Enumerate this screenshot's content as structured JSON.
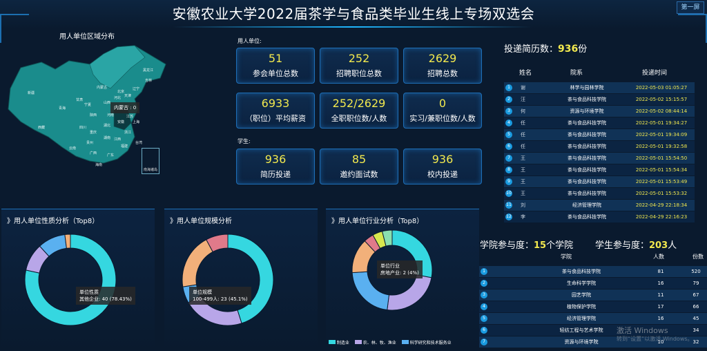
{
  "header": {
    "title": "安徽农业大学2022届茶学与食品类毕业生线上专场双选会",
    "screen_button": "第一屏"
  },
  "map": {
    "title": "用人单位区域分布",
    "tooltip": "内蒙古 : 0",
    "inset_label": "南海诸岛",
    "provinces": [
      "黑龙江",
      "吉林",
      "辽宁",
      "内蒙古",
      "新疆",
      "西藏",
      "青海",
      "甘肃",
      "宁夏",
      "陕西",
      "山西",
      "河北",
      "北京",
      "天津",
      "山东",
      "河南",
      "四川",
      "重庆",
      "湖北",
      "安徽",
      "江苏",
      "上海",
      "浙江",
      "湖南",
      "江西",
      "福建",
      "贵州",
      "云南",
      "广西",
      "广东",
      "海南",
      "台湾"
    ]
  },
  "employers": {
    "section_label": "用人单位:",
    "cards": [
      {
        "value": "51",
        "label": "参会单位总数"
      },
      {
        "value": "252",
        "label": "招聘职位总数"
      },
      {
        "value": "2629",
        "label": "招聘总数"
      },
      {
        "value": "6933",
        "label": "（职位）平均薪资"
      },
      {
        "value": "252/2629",
        "label": "全职职位数/人数"
      },
      {
        "value": "0",
        "label": "实习/兼职位数/人数"
      }
    ]
  },
  "students": {
    "section_label": "学生:",
    "cards": [
      {
        "value": "936",
        "label": "简历投递"
      },
      {
        "value": "85",
        "label": "邀约面试数"
      },
      {
        "value": "936",
        "label": "校内投递"
      }
    ]
  },
  "resumes": {
    "title_prefix": "投递简历数：",
    "count": "936",
    "unit": "份",
    "headers": {
      "name": "姓名",
      "dept": "院系",
      "time": "投递时间"
    },
    "rows": [
      {
        "idx": "1",
        "name": "谢",
        "dept": "林学与园林学院",
        "time": "2022-05-03 01:05:27"
      },
      {
        "idx": "2",
        "name": "汪",
        "dept": "茶与食品科技学院",
        "time": "2022-05-02 15:15:57"
      },
      {
        "idx": "3",
        "name": "何",
        "dept": "资源与环境学院",
        "time": "2022-05-02 08:44:14"
      },
      {
        "idx": "4",
        "name": "任",
        "dept": "茶与食品科技学院",
        "time": "2022-05-01 19:34:27"
      },
      {
        "idx": "5",
        "name": "任",
        "dept": "茶与食品科技学院",
        "time": "2022-05-01 19:34:09"
      },
      {
        "idx": "6",
        "name": "任",
        "dept": "茶与食品科技学院",
        "time": "2022-05-01 19:32:58"
      },
      {
        "idx": "7",
        "name": "王",
        "dept": "茶与食品科技学院",
        "time": "2022-05-01 15:54:50"
      },
      {
        "idx": "8",
        "name": "王",
        "dept": "茶与食品科技学院",
        "time": "2022-05-01 15:54:34"
      },
      {
        "idx": "9",
        "name": "王",
        "dept": "茶与食品科技学院",
        "time": "2022-05-01 15:53:49"
      },
      {
        "idx": "10",
        "name": "王",
        "dept": "茶与食品科技学院",
        "time": "2022-05-01 15:53:32"
      },
      {
        "idx": "11",
        "name": "刘",
        "dept": "经济管理学院",
        "time": "2022-04-29 22:18:34"
      },
      {
        "idx": "12",
        "name": "李",
        "dept": "茶与食品科技学院",
        "time": "2022-04-29 22:16:23"
      }
    ]
  },
  "participation": {
    "college_prefix": "学院参与度：",
    "college_count": "15",
    "college_unit": "个学院",
    "student_prefix": "学生参与度：",
    "student_count": "203",
    "student_unit": "人",
    "headers": {
      "college": "学院",
      "people": "人数",
      "share": "份数"
    },
    "rows": [
      {
        "idx": "1",
        "college": "茶与食品科技学院",
        "people": "81",
        "share": "520"
      },
      {
        "idx": "2",
        "college": "生命科学学院",
        "people": "16",
        "share": "79"
      },
      {
        "idx": "3",
        "college": "园艺学院",
        "people": "11",
        "share": "67"
      },
      {
        "idx": "4",
        "college": "植物保护学院",
        "people": "17",
        "share": "66"
      },
      {
        "idx": "5",
        "college": "经济管理学院",
        "people": "16",
        "share": "45"
      },
      {
        "idx": "6",
        "college": "轻纺工程与艺术学院",
        "people": "",
        "share": "34"
      },
      {
        "idx": "7",
        "college": "资源与环境学院",
        "people": "10",
        "share": "32"
      }
    ]
  },
  "charts": {
    "nature": {
      "title": "》用人单位性质分析（Top8）",
      "tooltip_title": "单位性质",
      "tooltip_value": "其他企业: 40 (78.43%)"
    },
    "scale": {
      "title": "》用人单位规模分析",
      "tooltip_title": "单位规模",
      "tooltip_value": "100-499人: 23 (45.1%)"
    },
    "industry": {
      "title": "》用人单位行业分析（Top8）",
      "tooltip_title": "单位行业",
      "tooltip_value": "房地产业: 2 (4%)",
      "legend": [
        "制造业",
        "农、林、牧、渔业",
        "科学研究和技术服务业"
      ]
    }
  },
  "chart_data": [
    {
      "type": "pie",
      "title": "用人单位性质分析（Top8）",
      "slices": [
        {
          "name": "其他企业",
          "value": 40,
          "color": "#35d7e0"
        },
        {
          "name": "",
          "value": 5,
          "color": "#b8a6e8"
        },
        {
          "name": "",
          "value": 5,
          "color": "#5ab0f0"
        },
        {
          "name": "",
          "value": 1,
          "color": "#f2b07a"
        }
      ]
    },
    {
      "type": "pie",
      "title": "用人单位规模分析",
      "slices": [
        {
          "name": "100-499人",
          "value": 23,
          "color": "#35d7e0"
        },
        {
          "name": "",
          "value": 11,
          "color": "#b8a6e8"
        },
        {
          "name": "",
          "value": 3,
          "color": "#5ab0f0"
        },
        {
          "name": "",
          "value": 10,
          "color": "#f2b07a"
        },
        {
          "name": "",
          "value": 4,
          "color": "#e07a8a"
        }
      ]
    },
    {
      "type": "pie",
      "title": "用人单位行业分析（Top8）",
      "slices": [
        {
          "name": "制造业",
          "value": 14,
          "color": "#35d7e0"
        },
        {
          "name": "农、林、牧、渔业",
          "value": 12,
          "color": "#b8a6e8"
        },
        {
          "name": "科学研究和技术服务业",
          "value": 11,
          "color": "#5ab0f0"
        },
        {
          "name": "",
          "value": 7,
          "color": "#f2b07a"
        },
        {
          "name": "",
          "value": 2,
          "color": "#e07a8a"
        },
        {
          "name": "",
          "value": 2,
          "color": "#d8e84e"
        },
        {
          "name": "房地产业",
          "value": 2,
          "color": "#8ae0b0"
        }
      ]
    }
  ],
  "watermark": {
    "line1": "激活 Windows",
    "line2": "转到“设置”以激活 Windows。"
  }
}
